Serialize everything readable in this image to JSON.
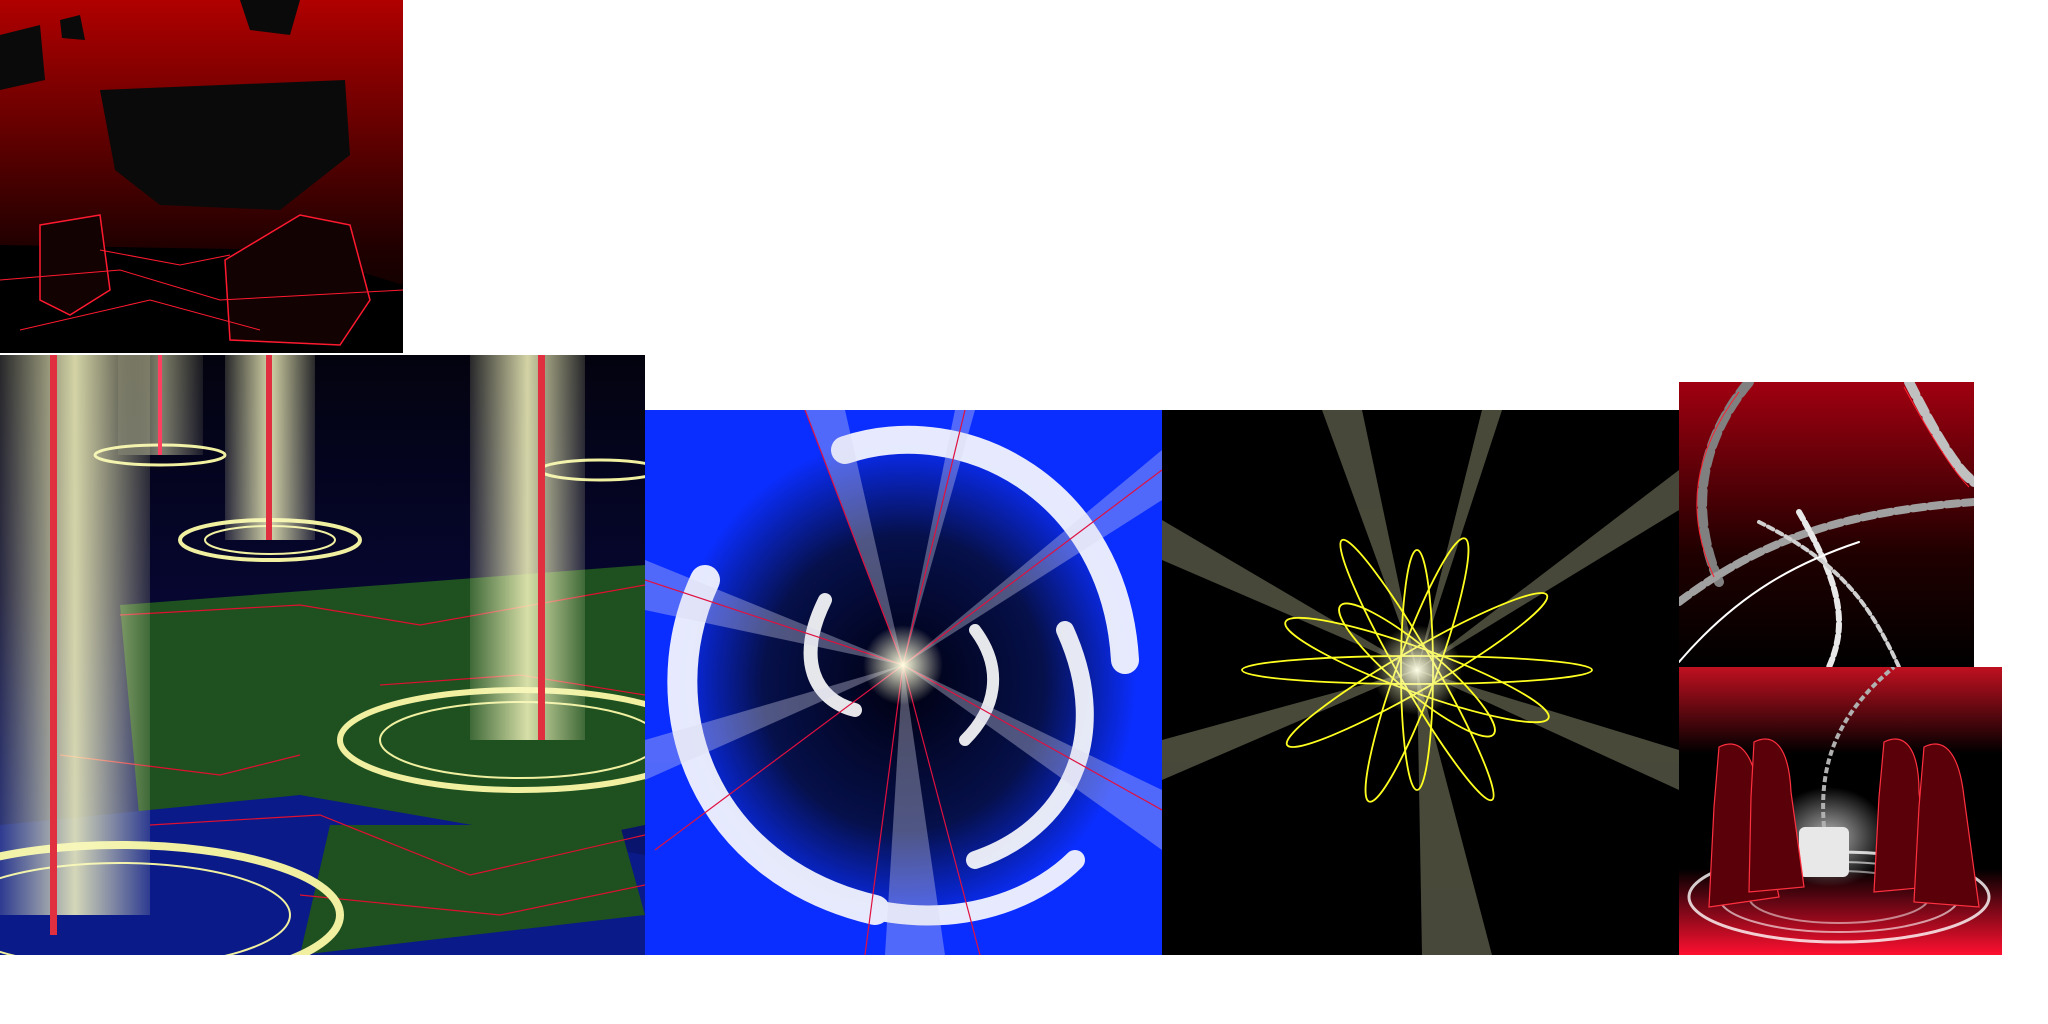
{
  "sheet": {
    "background": "#ffffff",
    "tiles": [
      {
        "id": "ruins",
        "depicts": "floating-rocks-red-sky",
        "colors": [
          "#b00000",
          "#000000",
          "#ff2040"
        ]
      },
      {
        "id": "pillars",
        "depicts": "light-pillars-magic-circles",
        "colors": [
          "#050520",
          "#1e5020",
          "#0a1a88",
          "#f0f0a0"
        ]
      },
      {
        "id": "vortex",
        "depicts": "blue-wind-vortex",
        "colors": [
          "#0a2eff",
          "#06104a",
          "#ffffff",
          "#e01040"
        ]
      },
      {
        "id": "burst",
        "depicts": "yellow-atom-burst",
        "colors": [
          "#000000",
          "#ffff20",
          "#f0f0c0"
        ]
      },
      {
        "id": "chains",
        "depicts": "red-chains",
        "colors": [
          "#a00010",
          "#000000",
          "#c0c0c0"
        ]
      },
      {
        "id": "ritual",
        "depicts": "hooded-figures-ritual",
        "colors": [
          "#000000",
          "#ff1030",
          "#ffffff"
        ]
      }
    ]
  }
}
